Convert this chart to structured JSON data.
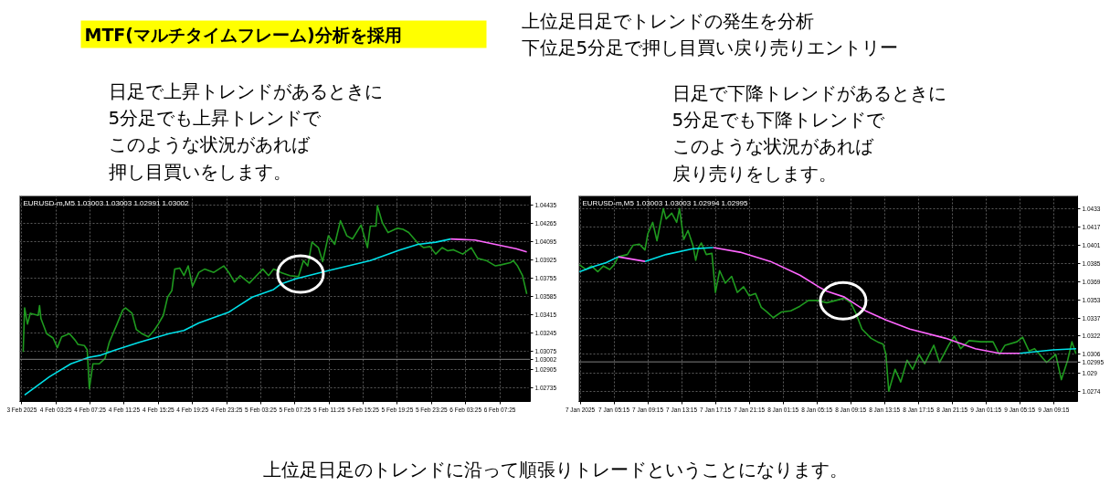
{
  "chart_data": [
    {
      "type": "other",
      "title": "MTF(マルチタイムフレーム)分析を採用",
      "annotations": [
        "上位足日足でトレンドの発生を分析",
        "下位足5分足で押し目買い戻り売りエントリー",
        "日足で上昇トレンドがあるときに",
        "5分足でも上昇トレンドで",
        "このような状況があれば",
        "押し目買いをします。",
        "日足で下降トレンドがあるときに",
        "5分足でも下降トレンドで",
        "このような状況があれば",
        "戻り売りをします。",
        "上位足日足のトレンドに沿って順張りトレードということになります。"
      ]
    },
    {
      "type": "line",
      "annotations": [
        "EURUSD-m,M5  1.03003 1.03003 1.02991 1.03002"
      ],
      "xlim": [
        "2025-02-03T23:10",
        "2025-02-06T11:00"
      ],
      "xticks": [
        {
          "value": "2025-02-03T23:25",
          "label": "3 Feb 2025"
        },
        {
          "value": "2025-02-04T03:25",
          "label": "4 Feb 03:25"
        },
        {
          "value": "2025-02-04T07:25",
          "label": "4 Feb 07:25"
        },
        {
          "value": "2025-02-04T11:25",
          "label": "4 Feb 11:25"
        },
        {
          "value": "2025-02-04T15:25",
          "label": "4 Feb 15:25"
        },
        {
          "value": "2025-02-04T19:25",
          "label": "4 Feb 19:25"
        },
        {
          "value": "2025-02-04T23:25",
          "label": "4 Feb 23:25"
        },
        {
          "value": "2025-02-05T03:25",
          "label": "5 Feb 03:25"
        },
        {
          "value": "2025-02-05T07:25",
          "label": "5 Feb 07:25"
        },
        {
          "value": "2025-02-05T11:25",
          "label": "5 Feb 11:25"
        },
        {
          "value": "2025-02-05T15:25",
          "label": "5 Feb 15:25"
        },
        {
          "value": "2025-02-05T19:25",
          "label": "5 Feb 19:25"
        },
        {
          "value": "2025-02-05T23:25",
          "label": "5 Feb 23:25"
        },
        {
          "value": "2025-02-06T03:25",
          "label": "6 Feb 03:25"
        },
        {
          "value": "2025-02-06T07:25",
          "label": "6 Feb 07:25"
        }
      ],
      "ylim": [
        1.0261,
        1.0452
      ],
      "yticks": [
        1.04435,
        1.04265,
        1.04095,
        1.03925,
        1.03755,
        1.03585,
        1.03415,
        1.03245,
        1.03075,
        1.02905,
        1.02735
      ],
      "grid": true,
      "ref_lines": [
        {
          "axis": "y",
          "value": 1.03002,
          "label": "1.03002",
          "color": "#808080"
        }
      ],
      "series": [
        {
          "color": "#1f9a1f",
          "x": [
            "2025-02-03T23:35",
            "2025-02-03T23:45",
            "2025-02-04T00:05",
            "2025-02-04T00:25",
            "2025-02-04T01:20",
            "2025-02-04T01:30",
            "2025-02-04T01:40",
            "2025-02-04T02:20",
            "2025-02-04T03:05",
            "2025-02-04T03:35",
            "2025-02-04T04:05",
            "2025-02-04T05:00",
            "2025-02-04T05:40",
            "2025-02-04T06:00",
            "2025-02-04T06:45",
            "2025-02-04T07:05",
            "2025-02-04T07:20",
            "2025-02-04T07:45",
            "2025-02-04T08:30",
            "2025-02-04T09:10",
            "2025-02-04T09:40",
            "2025-02-04T10:35",
            "2025-02-04T11:15",
            "2025-02-04T11:35",
            "2025-02-04T12:20",
            "2025-02-04T12:50",
            "2025-02-04T13:30",
            "2025-02-04T14:15",
            "2025-02-04T14:55",
            "2025-02-04T15:25",
            "2025-02-04T16:00",
            "2025-02-04T16:30",
            "2025-02-04T17:00",
            "2025-02-04T17:20",
            "2025-02-04T17:55",
            "2025-02-04T18:25",
            "2025-02-04T18:55",
            "2025-02-04T19:25",
            "2025-02-04T20:10",
            "2025-02-04T20:50",
            "2025-02-04T21:55",
            "2025-02-04T23:05",
            "2025-02-04T23:40",
            "2025-02-05T00:20",
            "2025-02-05T01:00",
            "2025-02-05T02:05",
            "2025-02-05T03:10",
            "2025-02-05T03:40",
            "2025-02-05T04:20",
            "2025-02-05T04:55",
            "2025-02-05T05:35",
            "2025-02-05T05:45",
            "2025-02-05T06:50",
            "2025-02-05T07:50",
            "2025-02-05T08:25",
            "2025-02-05T08:55",
            "2025-02-05T09:25",
            "2025-02-05T10:10",
            "2025-02-05T10:40",
            "2025-02-05T11:20",
            "2025-02-05T12:05",
            "2025-02-05T12:45",
            "2025-02-05T13:30",
            "2025-02-05T14:10",
            "2025-02-05T15:10",
            "2025-02-05T15:55",
            "2025-02-05T16:15",
            "2025-02-05T16:55",
            "2025-02-05T17:05",
            "2025-02-05T17:40",
            "2025-02-05T18:20",
            "2025-02-05T19:25",
            "2025-02-05T20:05",
            "2025-02-05T20:45",
            "2025-02-05T21:50",
            "2025-02-05T22:30",
            "2025-02-05T23:15",
            "2025-02-05T23:55",
            "2025-02-06T00:40",
            "2025-02-06T01:20",
            "2025-02-06T02:00",
            "2025-02-06T03:05",
            "2025-02-06T04:05",
            "2025-02-06T04:50",
            "2025-02-06T05:50",
            "2025-02-06T06:55",
            "2025-02-06T07:35",
            "2025-02-06T08:40",
            "2025-02-06T09:00",
            "2025-02-06T09:30",
            "2025-02-06T10:05",
            "2025-02-06T10:35"
          ],
          "values": [
            1.0307,
            1.0348,
            1.0333,
            1.0343,
            1.0341,
            1.035,
            1.0338,
            1.0324,
            1.032,
            1.0311,
            1.0321,
            1.0324,
            1.0318,
            1.0314,
            1.0313,
            1.0309,
            1.0273,
            1.0296,
            1.0296,
            1.0301,
            1.0316,
            1.0333,
            1.0346,
            1.0348,
            1.0343,
            1.0328,
            1.0324,
            1.0321,
            1.0327,
            1.0333,
            1.0341,
            1.0358,
            1.0364,
            1.0384,
            1.0385,
            1.0378,
            1.0387,
            1.0368,
            1.0381,
            1.0384,
            1.0381,
            1.0387,
            1.0381,
            1.0372,
            1.0378,
            1.0371,
            1.038,
            1.0384,
            1.0378,
            1.0384,
            1.0382,
            1.0381,
            1.0378,
            1.0377,
            1.0392,
            1.0387,
            1.0409,
            1.0404,
            1.0391,
            1.0415,
            1.0407,
            1.0429,
            1.0415,
            1.0412,
            1.0425,
            1.0404,
            1.0424,
            1.0424,
            1.0443,
            1.0427,
            1.0418,
            1.0422,
            1.0421,
            1.0418,
            1.0408,
            1.0404,
            1.0405,
            1.0398,
            1.0404,
            1.0401,
            1.0402,
            1.0398,
            1.0404,
            1.0394,
            1.0392,
            1.0387,
            1.0388,
            1.039,
            1.0392,
            1.0387,
            1.0378,
            1.0361
          ]
        },
        {
          "color": "#00e0e8",
          "x": [
            "2025-02-03T23:45",
            "2025-02-04T02:40",
            "2025-02-04T05:10",
            "2025-02-04T07:15",
            "2025-02-04T08:40",
            "2025-02-04T10:25",
            "2025-02-04T13:10",
            "2025-02-04T16:40",
            "2025-02-04T18:25",
            "2025-02-04T20:10",
            "2025-02-04T23:40",
            "2025-02-05T02:25",
            "2025-02-05T04:55",
            "2025-02-05T05:45",
            "2025-02-05T07:30",
            "2025-02-05T11:00",
            "2025-02-05T16:15",
            "2025-02-05T19:45",
            "2025-02-05T21:50",
            "2025-02-05T23:55",
            "2025-02-06T01:40"
          ],
          "values": [
            1.0267,
            1.0284,
            1.0296,
            1.0302,
            1.0304,
            1.0309,
            1.0316,
            1.0324,
            1.0327,
            1.0334,
            1.0344,
            1.0358,
            1.0365,
            1.037,
            1.0375,
            1.0382,
            1.0392,
            1.0402,
            1.0407,
            1.0409,
            1.0412
          ]
        },
        {
          "color": "#ff66ff",
          "x": [
            "2025-02-06T01:40",
            "2025-02-06T04:30",
            "2025-02-06T06:15",
            "2025-02-06T09:20",
            "2025-02-06T10:35"
          ],
          "values": [
            1.0412,
            1.0411,
            1.0408,
            1.0403,
            1.04
          ]
        }
      ]
    },
    {
      "type": "line",
      "annotations": [
        "EURUSD-m,M5  1.03003 1.03003 1.02994 1.02995"
      ],
      "xlim": [
        "2025-01-07T01:05",
        "2025-01-09T12:05"
      ],
      "xticks": [
        {
          "value": "2025-01-07T01:15",
          "label": "7 Jan 2025"
        },
        {
          "value": "2025-01-07T05:15",
          "label": "7 Jan 05:15"
        },
        {
          "value": "2025-01-07T09:15",
          "label": "7 Jan 09:15"
        },
        {
          "value": "2025-01-07T13:15",
          "label": "7 Jan 13:15"
        },
        {
          "value": "2025-01-07T17:15",
          "label": "7 Jan 17:15"
        },
        {
          "value": "2025-01-07T21:15",
          "label": "7 Jan 21:15"
        },
        {
          "value": "2025-01-08T01:15",
          "label": "8 Jan 01:15"
        },
        {
          "value": "2025-01-08T05:15",
          "label": "8 Jan 05:15"
        },
        {
          "value": "2025-01-08T09:15",
          "label": "8 Jan 09:15"
        },
        {
          "value": "2025-01-08T13:15",
          "label": "8 Jan 13:15"
        },
        {
          "value": "2025-01-08T17:15",
          "label": "8 Jan 17:15"
        },
        {
          "value": "2025-01-08T21:15",
          "label": "8 Jan 21:15"
        },
        {
          "value": "2025-01-09T01:15",
          "label": "9 Jan 01:15"
        },
        {
          "value": "2025-01-09T05:15",
          "label": "9 Jan 05:15"
        },
        {
          "value": "2025-01-09T09:15",
          "label": "9 Jan 09:15"
        }
      ],
      "ylim": [
        1.0265,
        1.0444
      ],
      "yticks": [
        1.0433,
        1.0417,
        1.0401,
        1.0385,
        1.0369,
        1.0353,
        1.0337,
        1.0322,
        1.0306,
        1.029,
        1.0274
      ],
      "grid": true,
      "ref_lines": [
        {
          "axis": "y",
          "value": 1.02995,
          "label": "1.02995",
          "color": "#808080"
        }
      ],
      "series": [
        {
          "color": "#1f9a1f",
          "x": [
            "2025-01-07T01:10",
            "2025-01-07T01:55",
            "2025-01-07T02:35",
            "2025-01-07T03:20",
            "2025-01-07T04:00",
            "2025-01-07T04:45",
            "2025-01-07T05:15",
            "2025-01-07T05:45",
            "2025-01-07T06:50",
            "2025-01-07T07:30",
            "2025-01-07T08:15",
            "2025-01-07T08:55",
            "2025-01-07T09:15",
            "2025-01-07T09:50",
            "2025-01-07T10:20",
            "2025-01-07T11:05",
            "2025-01-07T11:25",
            "2025-01-07T12:05",
            "2025-01-07T12:40",
            "2025-01-07T13:00",
            "2025-01-07T13:30",
            "2025-01-07T14:00",
            "2025-01-07T14:35",
            "2025-01-07T14:55",
            "2025-01-07T15:15",
            "2025-01-07T15:35",
            "2025-01-07T16:10",
            "2025-01-07T16:50",
            "2025-01-07T17:15",
            "2025-01-07T17:45",
            "2025-01-07T18:25",
            "2025-01-07T19:10",
            "2025-01-07T19:50",
            "2025-01-07T20:35",
            "2025-01-07T21:15",
            "2025-01-07T22:00",
            "2025-01-07T22:40",
            "2025-01-07T23:20",
            "2025-01-08T00:05",
            "2025-01-08T01:05",
            "2025-01-08T02:10",
            "2025-01-08T03:15",
            "2025-01-08T04:15",
            "2025-01-08T05:20",
            "2025-01-08T06:25",
            "2025-01-08T07:30",
            "2025-01-08T08:30",
            "2025-01-08T09:15",
            "2025-01-08T09:55",
            "2025-01-08T10:35",
            "2025-01-08T11:40",
            "2025-01-08T12:25",
            "2025-01-08T13:05",
            "2025-01-08T13:25",
            "2025-01-08T13:45",
            "2025-01-08T14:30",
            "2025-01-08T15:10",
            "2025-01-08T15:55",
            "2025-01-08T16:35",
            "2025-01-08T17:20",
            "2025-01-08T18:00",
            "2025-01-08T19:05",
            "2025-01-08T19:45",
            "2025-01-08T20:50",
            "2025-01-08T21:30",
            "2025-01-08T22:15",
            "2025-01-08T23:15",
            "2025-01-09T00:40",
            "2025-01-09T02:05",
            "2025-01-09T02:50",
            "2025-01-09T03:30",
            "2025-01-09T04:55",
            "2025-01-09T05:35",
            "2025-01-09T06:20",
            "2025-01-09T07:00",
            "2025-01-09T08:25",
            "2025-01-09T09:30",
            "2025-01-09T10:10",
            "2025-01-09T10:55",
            "2025-01-09T11:25",
            "2025-01-09T11:55"
          ],
          "values": [
            1.0384,
            1.038,
            1.0383,
            1.0378,
            1.0383,
            1.038,
            1.0384,
            1.0391,
            1.0393,
            1.0401,
            1.0402,
            1.0397,
            1.0411,
            1.0421,
            1.0405,
            1.0433,
            1.0424,
            1.0429,
            1.0421,
            1.0433,
            1.0406,
            1.0414,
            1.0401,
            1.0388,
            1.0399,
            1.0403,
            1.0393,
            1.0394,
            1.036,
            1.0379,
            1.0368,
            1.0374,
            1.036,
            1.0365,
            1.0357,
            1.0359,
            1.0347,
            1.0343,
            1.0338,
            1.0343,
            1.0344,
            1.0348,
            1.0353,
            1.0353,
            1.0351,
            1.0353,
            1.0355,
            1.0351,
            1.0341,
            1.0328,
            1.032,
            1.0317,
            1.0315,
            1.0306,
            1.0274,
            1.0293,
            1.0282,
            1.0301,
            1.0293,
            1.0306,
            1.0298,
            1.0314,
            1.0299,
            1.0314,
            1.0322,
            1.0311,
            1.0318,
            1.0317,
            1.0317,
            1.0306,
            1.0314,
            1.0317,
            1.0321,
            1.0309,
            1.0311,
            1.0299,
            1.0306,
            1.0284,
            1.0301,
            1.0317,
            1.0306
          ]
        },
        {
          "color": "#00e0e8",
          "x": [
            "2025-01-07T01:10",
            "2025-01-07T03:00",
            "2025-01-07T04:20",
            "2025-01-07T05:45",
            "2025-01-07T07:20",
            "2025-01-07T08:55",
            "2025-01-07T11:25",
            "2025-01-07T14:35",
            "2025-01-07T17:00",
            "2025-01-08T11:00",
            "2025-01-09T05:15",
            "2025-01-09T09:10",
            "2025-01-09T11:55"
          ],
          "values": [
            1.0378,
            1.0383,
            1.0386,
            1.0391,
            null,
            1.0387,
            1.0393,
            1.0398,
            1.0399,
            null,
            1.0307,
            1.031,
            1.0311
          ]
        },
        {
          "color": "#ff66ff",
          "x": [
            "2025-01-07T05:45",
            "2025-01-07T08:55",
            "2025-01-07T13:00",
            "2025-01-07T17:00",
            "2025-01-07T20:10",
            "2025-01-07T23:45",
            "2025-01-08T03:15",
            "2025-01-08T05:40",
            "2025-01-08T06:25",
            "2025-01-08T08:30",
            "2025-01-08T11:00",
            "2025-01-08T13:25",
            "2025-01-08T16:15",
            "2025-01-08T20:30",
            "2025-01-09T00:00",
            "2025-01-09T02:50",
            "2025-01-09T05:15"
          ],
          "values": [
            1.0391,
            1.0387,
            null,
            1.0399,
            1.0395,
            1.0387,
            1.0375,
            1.0364,
            1.0361,
            1.0356,
            1.0344,
            1.0336,
            1.0328,
            1.032,
            1.0311,
            1.0307,
            1.0307
          ]
        }
      ]
    }
  ]
}
